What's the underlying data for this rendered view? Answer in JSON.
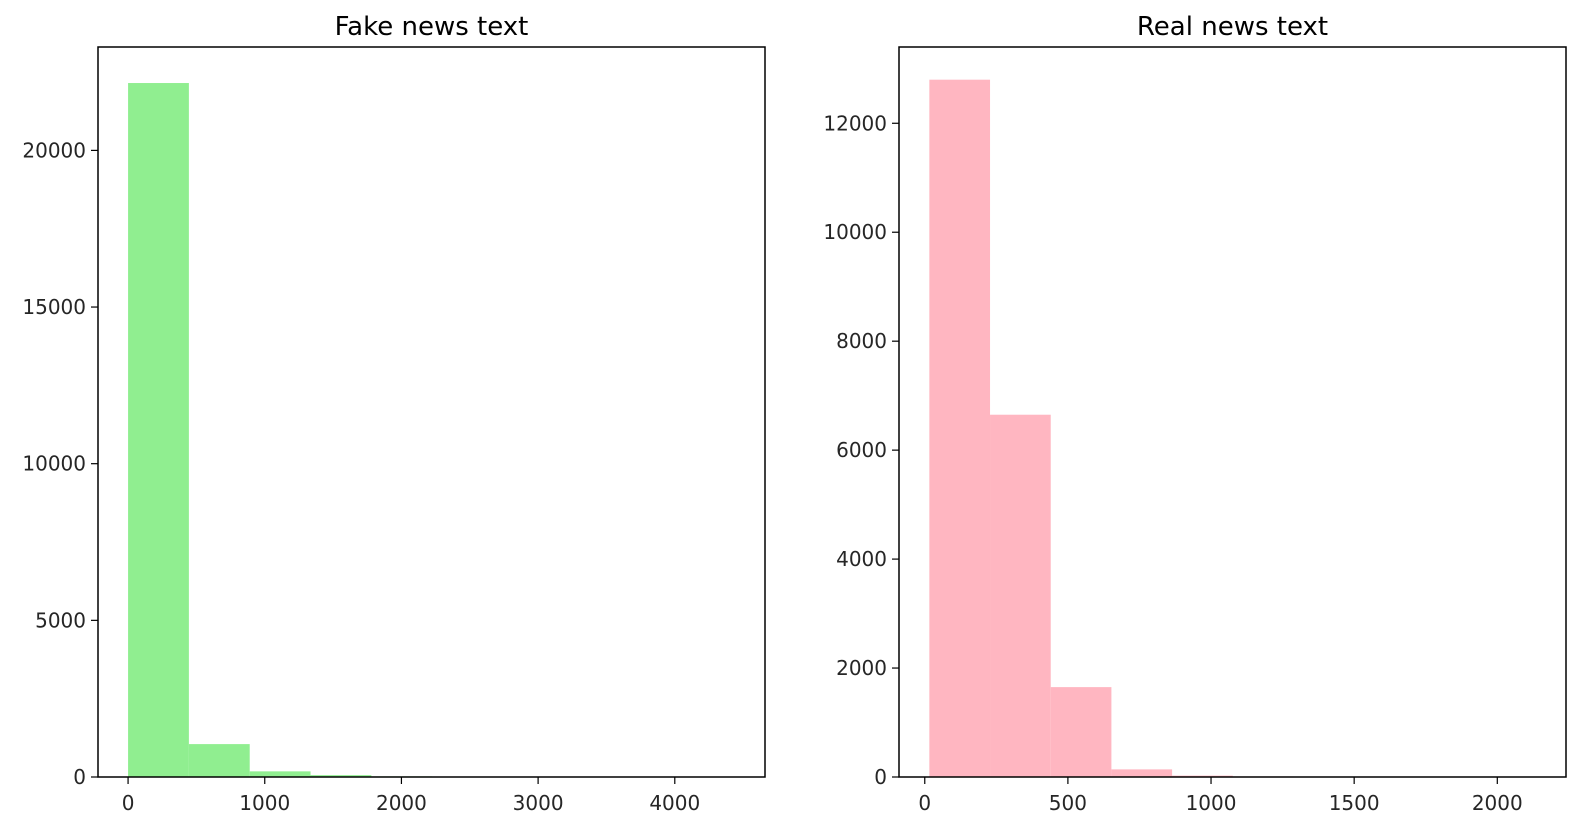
{
  "chart_data": [
    {
      "type": "bar",
      "title": "Fake news text",
      "xlabel": "",
      "ylabel": "",
      "color": "#90ee90",
      "xlim": [
        -220,
        4660
      ],
      "ylim": [
        0,
        23300
      ],
      "x_ticks": [
        0,
        1000,
        2000,
        3000,
        4000
      ],
      "y_ticks": [
        0,
        5000,
        10000,
        15000,
        20000
      ],
      "bins": [
        {
          "x0": 0,
          "x1": 445,
          "count": 22150
        },
        {
          "x0": 445,
          "x1": 890,
          "count": 1050
        },
        {
          "x0": 890,
          "x1": 1335,
          "count": 180
        },
        {
          "x0": 1335,
          "x1": 1780,
          "count": 60
        },
        {
          "x0": 1780,
          "x1": 2225,
          "count": 20
        },
        {
          "x0": 2225,
          "x1": 2670,
          "count": 8
        },
        {
          "x0": 2670,
          "x1": 3115,
          "count": 4
        },
        {
          "x0": 3115,
          "x1": 3560,
          "count": 2
        },
        {
          "x0": 3560,
          "x1": 4005,
          "count": 1
        },
        {
          "x0": 4005,
          "x1": 4450,
          "count": 1
        }
      ]
    },
    {
      "type": "bar",
      "title": "Real news text",
      "xlabel": "",
      "ylabel": "",
      "color": "#ffb6c1",
      "xlim": [
        -90,
        2240
      ],
      "ylim": [
        0,
        13400
      ],
      "x_ticks": [
        0,
        500,
        1000,
        1500,
        2000
      ],
      "y_ticks": [
        0,
        2000,
        4000,
        6000,
        8000,
        10000,
        12000
      ],
      "bins": [
        {
          "x0": 16,
          "x1": 228,
          "count": 12800
        },
        {
          "x0": 228,
          "x1": 440,
          "count": 6650
        },
        {
          "x0": 440,
          "x1": 652,
          "count": 1650
        },
        {
          "x0": 652,
          "x1": 864,
          "count": 140
        },
        {
          "x0": 864,
          "x1": 1076,
          "count": 25
        },
        {
          "x0": 1076,
          "x1": 1288,
          "count": 10
        },
        {
          "x0": 1288,
          "x1": 1500,
          "count": 5
        },
        {
          "x0": 1500,
          "x1": 1712,
          "count": 3
        },
        {
          "x0": 1712,
          "x1": 1924,
          "count": 2
        },
        {
          "x0": 1924,
          "x1": 2136,
          "count": 1
        }
      ]
    }
  ]
}
